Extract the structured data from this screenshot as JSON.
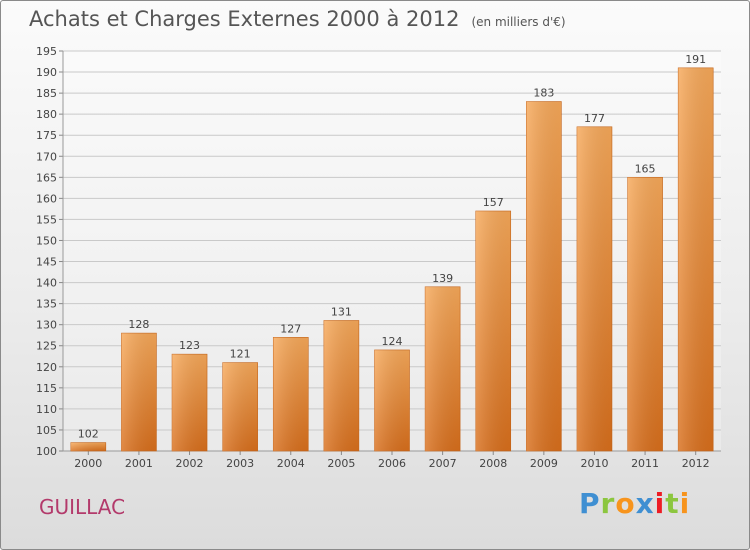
{
  "header": {
    "title": "Achats et Charges Externes 2000 à 2012",
    "unit": "(en milliers d'€)"
  },
  "footer": {
    "town": "GUILLAC",
    "logo_text": "Proxiti",
    "logo_letters": [
      {
        "ch": "P",
        "color": "#3f8fd2"
      },
      {
        "ch": "r",
        "color": "#8cc63f"
      },
      {
        "ch": "o",
        "color": "#f7941d"
      },
      {
        "ch": "x",
        "color": "#3f8fd2"
      },
      {
        "ch": "i",
        "color": "#ed1c24"
      },
      {
        "ch": "t",
        "color": "#8cc63f"
      },
      {
        "ch": "i",
        "color": "#f7941d"
      }
    ]
  },
  "chart_data": {
    "type": "bar",
    "categories": [
      "2000",
      "2001",
      "2002",
      "2003",
      "2004",
      "2005",
      "2006",
      "2007",
      "2008",
      "2009",
      "2010",
      "2011",
      "2012"
    ],
    "values": [
      102,
      128,
      123,
      121,
      127,
      131,
      124,
      139,
      157,
      183,
      177,
      165,
      191
    ],
    "ylim": [
      100,
      195
    ],
    "ytick_step": 5,
    "grid": true,
    "bar_color": "#f0923c",
    "data_labels": true
  }
}
